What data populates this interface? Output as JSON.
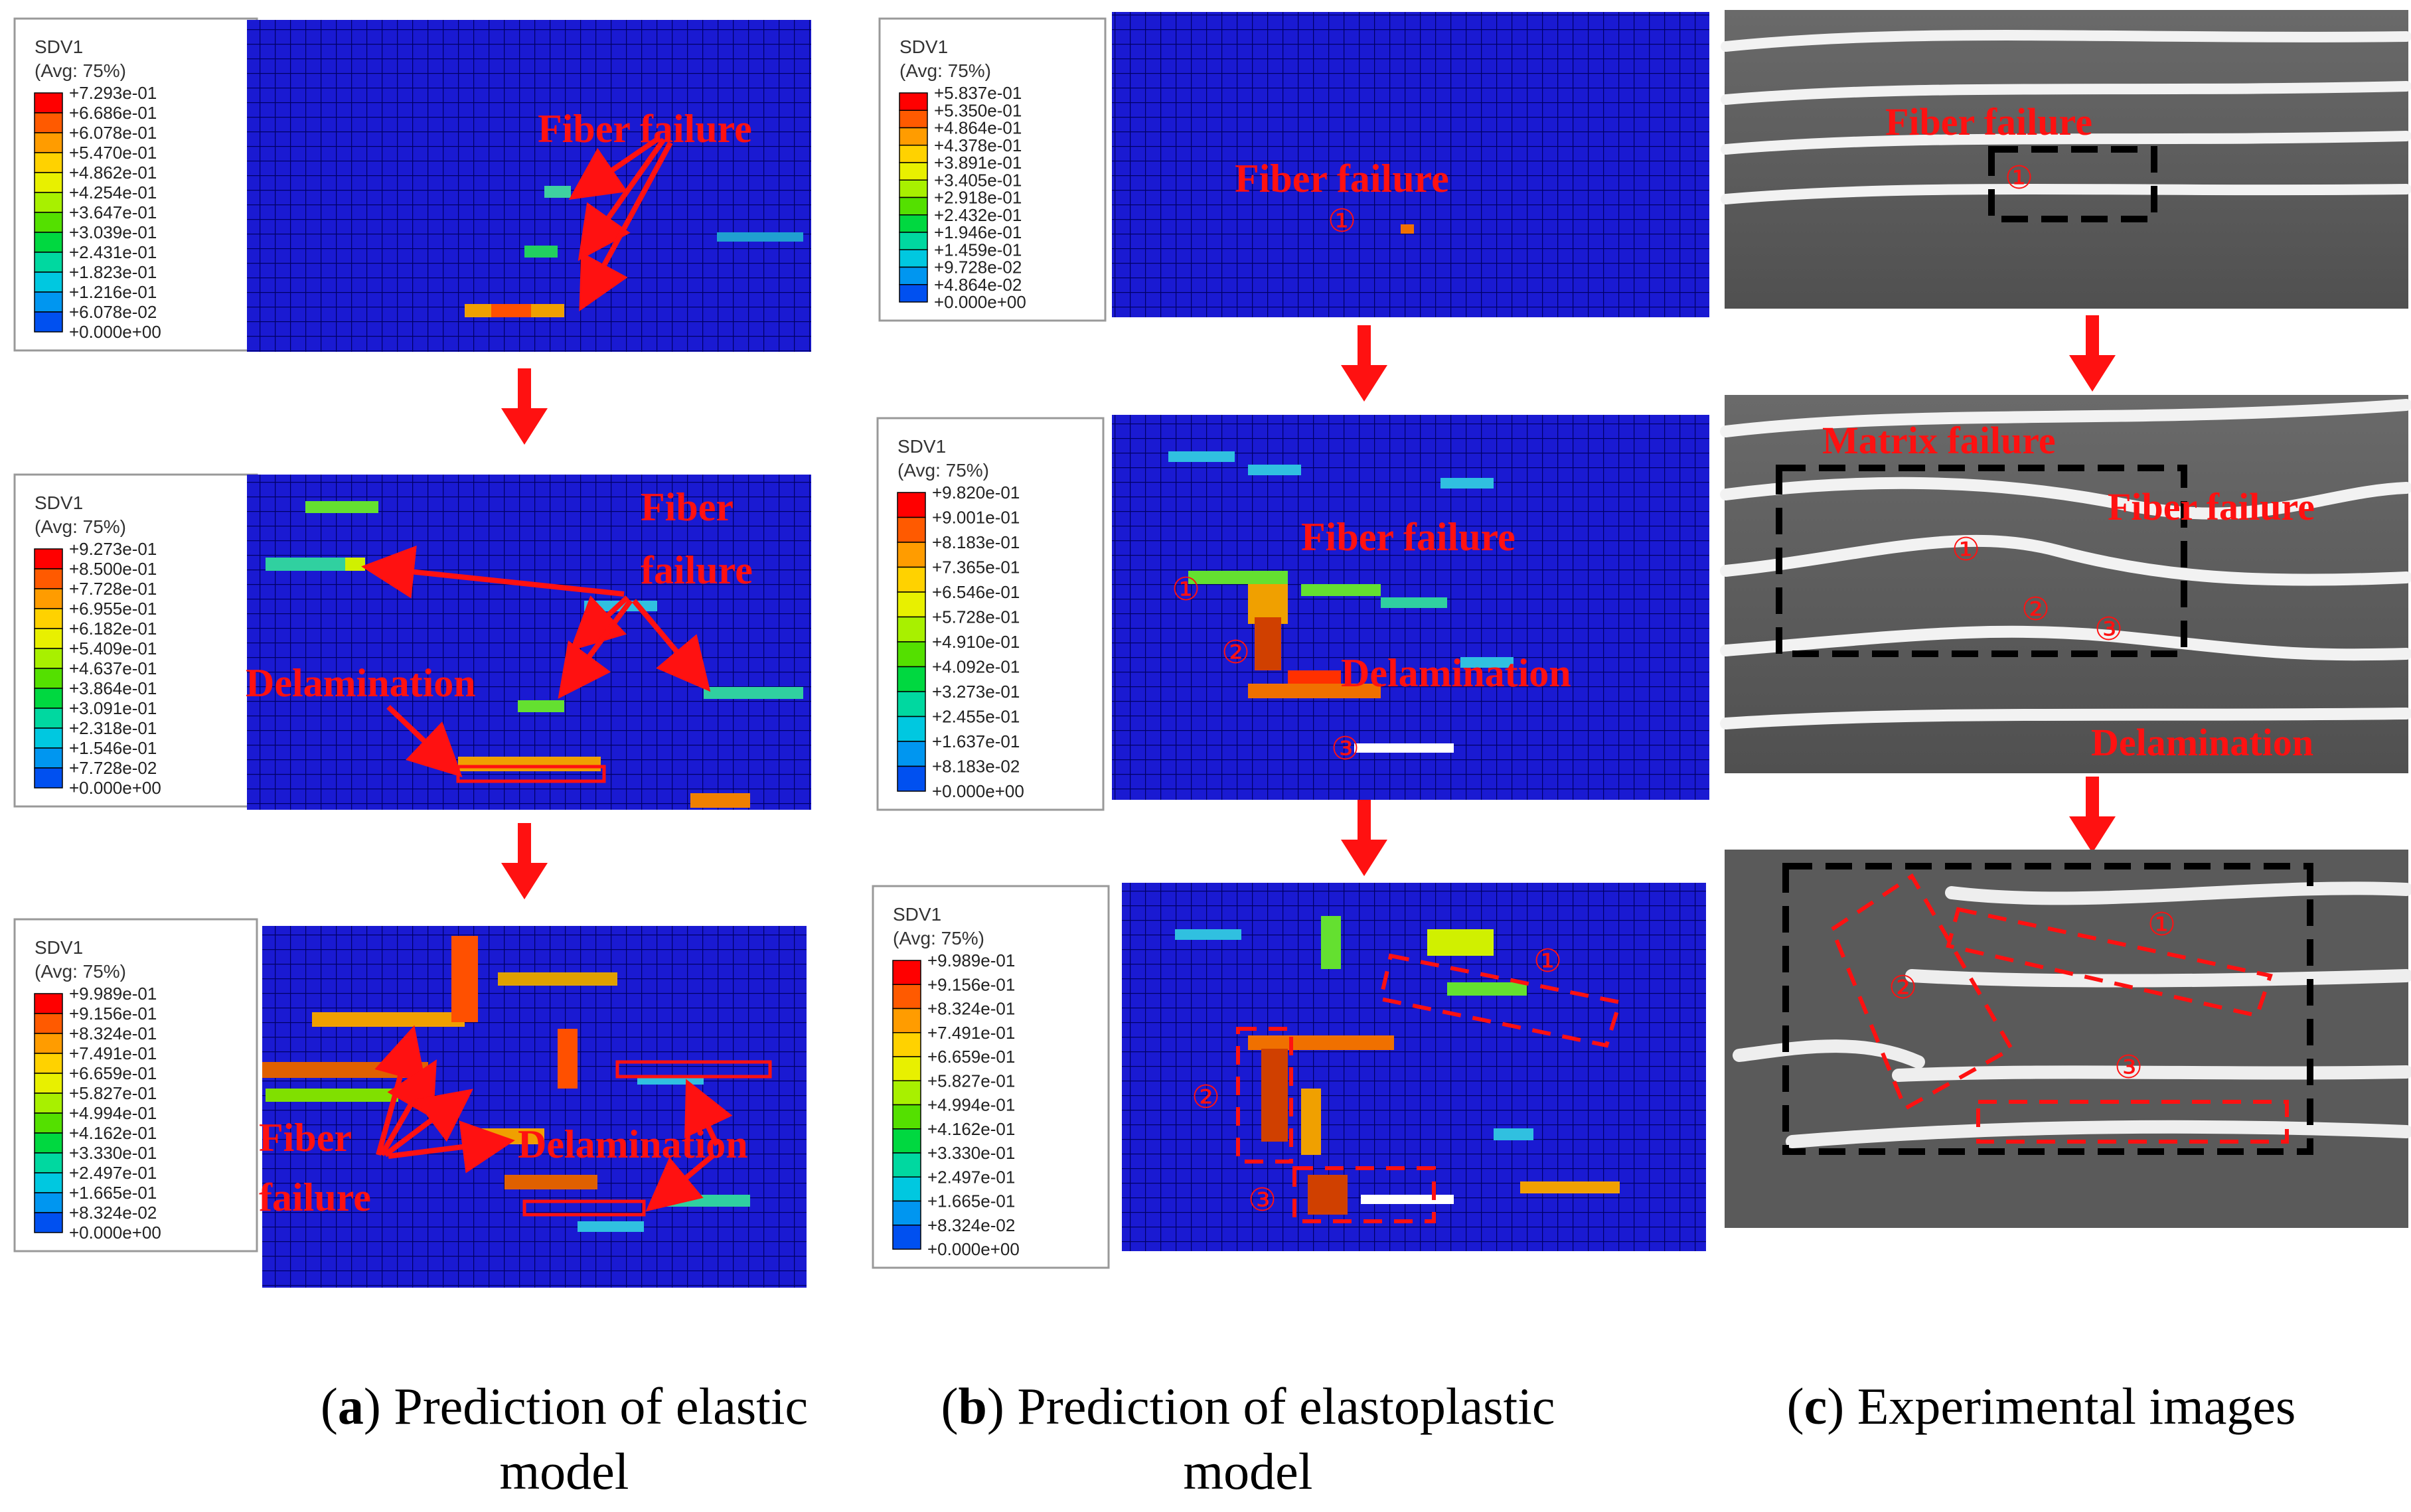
{
  "columns": [
    {
      "caption_letter": "a",
      "caption_text": "Prediction of elastic model",
      "panels": [
        {
          "legend": {
            "title": "SDV1",
            "subtitle": "(Avg: 75%)",
            "values": [
              "+7.293e-01",
              "+6.686e-01",
              "+6.078e-01",
              "+5.470e-01",
              "+4.862e-01",
              "+4.254e-01",
              "+3.647e-01",
              "+3.039e-01",
              "+2.431e-01",
              "+1.823e-01",
              "+1.216e-01",
              "+6.078e-02",
              "+0.000e+00"
            ]
          },
          "annotations": [
            "Fiber failure"
          ]
        },
        {
          "legend": {
            "title": "SDV1",
            "subtitle": "(Avg: 75%)",
            "values": [
              "+9.273e-01",
              "+8.500e-01",
              "+7.728e-01",
              "+6.955e-01",
              "+6.182e-01",
              "+5.409e-01",
              "+4.637e-01",
              "+3.864e-01",
              "+3.091e-01",
              "+2.318e-01",
              "+1.546e-01",
              "+7.728e-02",
              "+0.000e+00"
            ]
          },
          "annotations": [
            "Fiber",
            "failure",
            "Delamination"
          ]
        },
        {
          "legend": {
            "title": "SDV1",
            "subtitle": "(Avg: 75%)",
            "values": [
              "+9.989e-01",
              "+9.156e-01",
              "+8.324e-01",
              "+7.491e-01",
              "+6.659e-01",
              "+5.827e-01",
              "+4.994e-01",
              "+4.162e-01",
              "+3.330e-01",
              "+2.497e-01",
              "+1.665e-01",
              "+8.324e-02",
              "+0.000e+00"
            ]
          },
          "annotations": [
            "Fiber",
            "failure",
            "Delamination"
          ]
        }
      ]
    },
    {
      "caption_letter": "b",
      "caption_text": "Prediction of elastoplastic",
      "caption_text2": "model",
      "panels": [
        {
          "legend": {
            "title": "SDV1",
            "subtitle": "(Avg: 75%)",
            "values": [
              "+5.837e-01",
              "+5.350e-01",
              "+4.864e-01",
              "+4.378e-01",
              "+3.891e-01",
              "+3.405e-01",
              "+2.918e-01",
              "+2.432e-01",
              "+1.946e-01",
              "+1.459e-01",
              "+9.728e-02",
              "+4.864e-02",
              "+0.000e+00"
            ]
          },
          "annotations": [
            "Fiber failure",
            "①"
          ]
        },
        {
          "legend": {
            "title": "SDV1",
            "subtitle": "(Avg: 75%)",
            "values": [
              "+9.820e-01",
              "+9.001e-01",
              "+8.183e-01",
              "+7.365e-01",
              "+6.546e-01",
              "+5.728e-01",
              "+4.910e-01",
              "+4.092e-01",
              "+3.273e-01",
              "+2.455e-01",
              "+1.637e-01",
              "+8.183e-02",
              "+0.000e+00"
            ]
          },
          "annotations": [
            "Fiber failure",
            "Delamination",
            "①",
            "②",
            "③"
          ]
        },
        {
          "legend": {
            "title": "SDV1",
            "subtitle": "(Avg: 75%)",
            "values": [
              "+9.989e-01",
              "+9.156e-01",
              "+8.324e-01",
              "+7.491e-01",
              "+6.659e-01",
              "+5.827e-01",
              "+4.994e-01",
              "+4.162e-01",
              "+3.330e-01",
              "+2.497e-01",
              "+1.665e-01",
              "+8.324e-02",
              "+0.000e+00"
            ]
          },
          "annotations": [
            "①",
            "②",
            "③"
          ]
        }
      ]
    },
    {
      "caption_letter": "c",
      "caption_text": "Experimental images",
      "panels": [
        {
          "annotations": [
            "Fiber failure",
            "①"
          ]
        },
        {
          "annotations": [
            "Matrix failure",
            "Fiber failure",
            "Delamination",
            "①",
            "②",
            "③"
          ]
        },
        {
          "annotations": [
            "①",
            "②",
            "③"
          ]
        }
      ]
    }
  ],
  "colors": {
    "annotation": "#ff1111",
    "mesh_fill": "#1a1ad2",
    "mesh_line": "#000066",
    "contour_scale": [
      "#ff0000",
      "#ff5a00",
      "#ff9c00",
      "#ffd200",
      "#e8f000",
      "#a8f000",
      "#54e000",
      "#00d840",
      "#00d8a0",
      "#00c8e0",
      "#0096f0",
      "#0050f0",
      "#0000ff"
    ]
  }
}
